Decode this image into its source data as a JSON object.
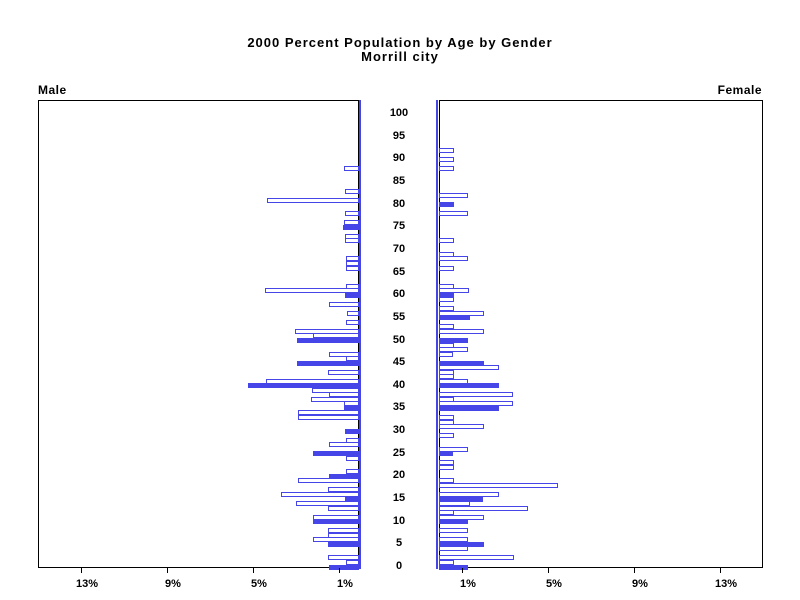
{
  "colors": {
    "bar_blue": "#4545e8",
    "open_bar_fill": "#ffffff",
    "axis_black": "#000000"
  },
  "chart_data": {
    "type": "bar",
    "orientation": "horizontal-population-pyramid",
    "title": "2000 Percent Population by Age by Gender",
    "subtitle": "Morrill city",
    "x_unit": "%",
    "x_tick_values_pct": [
      1,
      5,
      9,
      13
    ],
    "x_tick_labels": [
      "1%",
      "5%",
      "9%",
      "13%"
    ],
    "x_max_pct": 15,
    "age_axis_ticks": [
      0,
      5,
      10,
      15,
      20,
      25,
      30,
      35,
      40,
      45,
      50,
      55,
      60,
      65,
      70,
      75,
      80,
      85,
      90,
      95,
      100
    ],
    "legend_note": "solid bars mark ages at multiples of 5; open bars are other single years of age",
    "series": [
      {
        "name": "Male",
        "side": "left",
        "bars": [
          {
            "age": 88,
            "pct": 0.7,
            "solid": false
          },
          {
            "age": 83,
            "pct": 0.65,
            "solid": false
          },
          {
            "age": 81,
            "pct": 4.28,
            "solid": false
          },
          {
            "age": 78,
            "pct": 0.65,
            "solid": false
          },
          {
            "age": 76,
            "pct": 0.7,
            "solid": false
          },
          {
            "age": 75,
            "pct": 0.74,
            "solid": true
          },
          {
            "age": 73,
            "pct": 0.65,
            "solid": false
          },
          {
            "age": 72,
            "pct": 0.65,
            "solid": false
          },
          {
            "age": 68,
            "pct": 0.6,
            "solid": false
          },
          {
            "age": 67,
            "pct": 0.6,
            "solid": false
          },
          {
            "age": 66,
            "pct": 0.6,
            "solid": false
          },
          {
            "age": 62,
            "pct": 0.6,
            "solid": false
          },
          {
            "age": 61,
            "pct": 4.37,
            "solid": false
          },
          {
            "age": 60,
            "pct": 0.65,
            "solid": true
          },
          {
            "age": 58,
            "pct": 1.4,
            "solid": false
          },
          {
            "age": 56,
            "pct": 0.56,
            "solid": false
          },
          {
            "age": 54,
            "pct": 0.6,
            "solid": false
          },
          {
            "age": 52,
            "pct": 2.98,
            "solid": false
          },
          {
            "age": 51,
            "pct": 2.14,
            "solid": false
          },
          {
            "age": 50,
            "pct": 2.88,
            "solid": true
          },
          {
            "age": 47,
            "pct": 1.4,
            "solid": false
          },
          {
            "age": 46,
            "pct": 0.6,
            "solid": false
          },
          {
            "age": 45,
            "pct": 2.88,
            "solid": true
          },
          {
            "age": 43,
            "pct": 1.44,
            "solid": false
          },
          {
            "age": 41,
            "pct": 4.33,
            "solid": false
          },
          {
            "age": 40,
            "pct": 5.17,
            "solid": true
          },
          {
            "age": 39,
            "pct": 2.2,
            "solid": false
          },
          {
            "age": 38,
            "pct": 1.4,
            "solid": false
          },
          {
            "age": 37,
            "pct": 2.23,
            "solid": false
          },
          {
            "age": 36,
            "pct": 0.68,
            "solid": false
          },
          {
            "age": 35,
            "pct": 0.68,
            "solid": true
          },
          {
            "age": 34,
            "pct": 2.85,
            "solid": false
          },
          {
            "age": 33,
            "pct": 2.84,
            "solid": false
          },
          {
            "age": 30,
            "pct": 0.65,
            "solid": true
          },
          {
            "age": 28,
            "pct": 0.6,
            "solid": false
          },
          {
            "age": 27,
            "pct": 1.4,
            "solid": false
          },
          {
            "age": 25,
            "pct": 2.14,
            "solid": true
          },
          {
            "age": 24,
            "pct": 0.6,
            "solid": false
          },
          {
            "age": 21,
            "pct": 0.6,
            "solid": false
          },
          {
            "age": 20,
            "pct": 1.4,
            "solid": true
          },
          {
            "age": 19,
            "pct": 2.84,
            "solid": false
          },
          {
            "age": 17,
            "pct": 1.44,
            "solid": false
          },
          {
            "age": 16,
            "pct": 3.63,
            "solid": false
          },
          {
            "age": 15,
            "pct": 0.65,
            "solid": true
          },
          {
            "age": 14,
            "pct": 2.93,
            "solid": false
          },
          {
            "age": 13,
            "pct": 1.43,
            "solid": false
          },
          {
            "age": 11,
            "pct": 2.15,
            "solid": false
          },
          {
            "age": 10,
            "pct": 2.15,
            "solid": true
          },
          {
            "age": 8,
            "pct": 1.43,
            "solid": false
          },
          {
            "age": 7,
            "pct": 1.43,
            "solid": false
          },
          {
            "age": 6,
            "pct": 2.15,
            "solid": false
          },
          {
            "age": 5,
            "pct": 1.43,
            "solid": true
          },
          {
            "age": 2,
            "pct": 1.43,
            "solid": false
          },
          {
            "age": 1,
            "pct": 0.6,
            "solid": false
          },
          {
            "age": 0,
            "pct": 1.38,
            "solid": true
          }
        ]
      },
      {
        "name": "Female",
        "side": "right",
        "bars": [
          {
            "age": 92,
            "pct": 0.7,
            "solid": false
          },
          {
            "age": 90,
            "pct": 0.7,
            "solid": false
          },
          {
            "age": 88,
            "pct": 0.7,
            "solid": false
          },
          {
            "age": 82,
            "pct": 1.35,
            "solid": false
          },
          {
            "age": 80,
            "pct": 0.7,
            "solid": true
          },
          {
            "age": 78,
            "pct": 1.35,
            "solid": false
          },
          {
            "age": 72,
            "pct": 0.71,
            "solid": false
          },
          {
            "age": 69,
            "pct": 0.7,
            "solid": false
          },
          {
            "age": 68,
            "pct": 1.35,
            "solid": false
          },
          {
            "age": 66,
            "pct": 0.7,
            "solid": false
          },
          {
            "age": 62,
            "pct": 0.7,
            "solid": false
          },
          {
            "age": 61,
            "pct": 1.41,
            "solid": false
          },
          {
            "age": 60,
            "pct": 0.7,
            "solid": true
          },
          {
            "age": 59,
            "pct": 0.68,
            "solid": false
          },
          {
            "age": 57,
            "pct": 0.68,
            "solid": false
          },
          {
            "age": 56,
            "pct": 2.09,
            "solid": false
          },
          {
            "age": 55,
            "pct": 1.42,
            "solid": true
          },
          {
            "age": 53,
            "pct": 0.68,
            "solid": false
          },
          {
            "age": 52,
            "pct": 2.09,
            "solid": false
          },
          {
            "age": 50,
            "pct": 1.37,
            "solid": true
          },
          {
            "age": 49,
            "pct": 0.68,
            "solid": false
          },
          {
            "age": 48,
            "pct": 1.37,
            "solid": false
          },
          {
            "age": 47,
            "pct": 0.64,
            "solid": false
          },
          {
            "age": 45,
            "pct": 2.09,
            "solid": true
          },
          {
            "age": 44,
            "pct": 2.78,
            "solid": false
          },
          {
            "age": 43,
            "pct": 0.68,
            "solid": false
          },
          {
            "age": 42,
            "pct": 0.68,
            "solid": false
          },
          {
            "age": 41,
            "pct": 1.33,
            "solid": false
          },
          {
            "age": 40,
            "pct": 2.78,
            "solid": true
          },
          {
            "age": 38,
            "pct": 3.46,
            "solid": false
          },
          {
            "age": 37,
            "pct": 0.68,
            "solid": false
          },
          {
            "age": 36,
            "pct": 3.46,
            "solid": false
          },
          {
            "age": 35,
            "pct": 2.78,
            "solid": true
          },
          {
            "age": 33,
            "pct": 0.68,
            "solid": false
          },
          {
            "age": 32,
            "pct": 0.68,
            "solid": false
          },
          {
            "age": 31,
            "pct": 2.09,
            "solid": false
          },
          {
            "age": 29,
            "pct": 0.68,
            "solid": false
          },
          {
            "age": 26,
            "pct": 1.37,
            "solid": false
          },
          {
            "age": 25,
            "pct": 0.64,
            "solid": true
          },
          {
            "age": 23,
            "pct": 0.68,
            "solid": false
          },
          {
            "age": 22,
            "pct": 0.68,
            "solid": false
          },
          {
            "age": 19,
            "pct": 0.68,
            "solid": false
          },
          {
            "age": 18,
            "pct": 5.52,
            "solid": false
          },
          {
            "age": 16,
            "pct": 2.8,
            "solid": false
          },
          {
            "age": 15,
            "pct": 2.06,
            "solid": true
          },
          {
            "age": 14,
            "pct": 1.46,
            "solid": false
          },
          {
            "age": 13,
            "pct": 4.15,
            "solid": false
          },
          {
            "age": 12,
            "pct": 0.68,
            "solid": false
          },
          {
            "age": 11,
            "pct": 2.09,
            "solid": false
          },
          {
            "age": 10,
            "pct": 1.37,
            "solid": true
          },
          {
            "age": 8,
            "pct": 1.37,
            "solid": false
          },
          {
            "age": 6,
            "pct": 1.37,
            "solid": false
          },
          {
            "age": 5,
            "pct": 2.11,
            "solid": true
          },
          {
            "age": 4,
            "pct": 1.37,
            "solid": false
          },
          {
            "age": 2,
            "pct": 3.47,
            "solid": false
          },
          {
            "age": 1,
            "pct": 0.68,
            "solid": false
          },
          {
            "age": 0,
            "pct": 1.37,
            "solid": true
          }
        ]
      }
    ]
  }
}
